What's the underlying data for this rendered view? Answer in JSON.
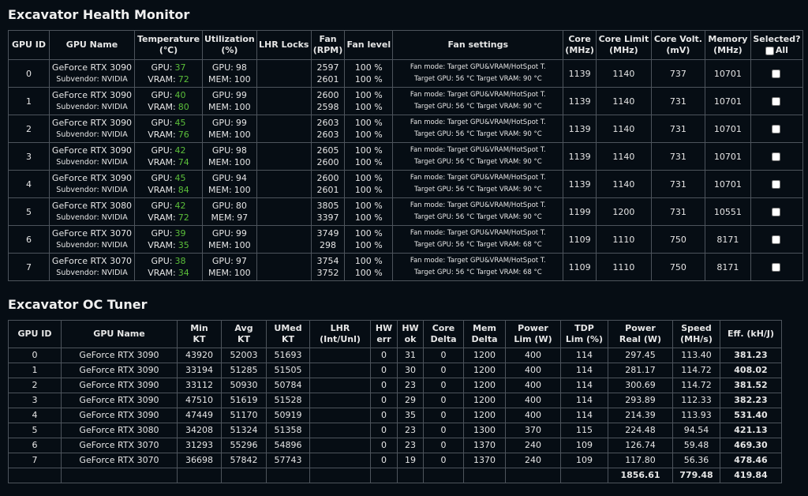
{
  "labels": {
    "gpu": "GPU:",
    "vram": "VRAM:",
    "mem": "MEM:"
  },
  "health": {
    "title": "Excavator Health Monitor",
    "headers": [
      [
        "GPU ID"
      ],
      [
        "GPU Name"
      ],
      [
        "Temperature",
        "(℃)"
      ],
      [
        "Utilization",
        "(%)"
      ],
      [
        "LHR Locks"
      ],
      [
        "Fan",
        "(RPM)"
      ],
      [
        "Fan level"
      ],
      [
        "Fan settings"
      ],
      [
        "Core",
        "(MHz)"
      ],
      [
        "Core Limit",
        "(MHz)"
      ],
      [
        "Core Volt.",
        "(mV)"
      ],
      [
        "Memory",
        "(MHz)"
      ],
      [
        "Selected?",
        "All"
      ]
    ],
    "rows": [
      {
        "id": 0,
        "name": "GeForce RTX 3090",
        "subvendor": "Subvendor: NVIDIA",
        "temp": [
          37,
          72
        ],
        "util": [
          98,
          100
        ],
        "fan_rpm": [
          2597,
          2601
        ],
        "fan_level": [
          "100 %",
          "100 %"
        ],
        "fan_settings": [
          "Fan mode: Target GPU&VRAM/HotSpot T.",
          "Target GPU: 56 °C Target VRAM: 90 °C"
        ],
        "core": 1139,
        "core_limit": 1140,
        "voltage": 737,
        "memory": 10701
      },
      {
        "id": 1,
        "name": "GeForce RTX 3090",
        "subvendor": "Subvendor: NVIDIA",
        "temp": [
          40,
          80
        ],
        "util": [
          99,
          100
        ],
        "fan_rpm": [
          2600,
          2598
        ],
        "fan_level": [
          "100 %",
          "100 %"
        ],
        "fan_settings": [
          "Fan mode: Target GPU&VRAM/HotSpot T.",
          "Target GPU: 56 °C Target VRAM: 90 °C"
        ],
        "core": 1139,
        "core_limit": 1140,
        "voltage": 731,
        "memory": 10701
      },
      {
        "id": 2,
        "name": "GeForce RTX 3090",
        "subvendor": "Subvendor: NVIDIA",
        "temp": [
          45,
          76
        ],
        "util": [
          99,
          100
        ],
        "fan_rpm": [
          2603,
          2603
        ],
        "fan_level": [
          "100 %",
          "100 %"
        ],
        "fan_settings": [
          "Fan mode: Target GPU&VRAM/HotSpot T.",
          "Target GPU: 56 °C Target VRAM: 90 °C"
        ],
        "core": 1139,
        "core_limit": 1140,
        "voltage": 731,
        "memory": 10701
      },
      {
        "id": 3,
        "name": "GeForce RTX 3090",
        "subvendor": "Subvendor: NVIDIA",
        "temp": [
          42,
          74
        ],
        "util": [
          98,
          100
        ],
        "fan_rpm": [
          2605,
          2600
        ],
        "fan_level": [
          "100 %",
          "100 %"
        ],
        "fan_settings": [
          "Fan mode: Target GPU&VRAM/HotSpot T.",
          "Target GPU: 56 °C Target VRAM: 90 °C"
        ],
        "core": 1139,
        "core_limit": 1140,
        "voltage": 731,
        "memory": 10701
      },
      {
        "id": 4,
        "name": "GeForce RTX 3090",
        "subvendor": "Subvendor: NVIDIA",
        "temp": [
          45,
          84
        ],
        "util": [
          94,
          100
        ],
        "fan_rpm": [
          2600,
          2601
        ],
        "fan_level": [
          "100 %",
          "100 %"
        ],
        "fan_settings": [
          "Fan mode: Target GPU&VRAM/HotSpot T.",
          "Target GPU: 56 °C Target VRAM: 90 °C"
        ],
        "core": 1139,
        "core_limit": 1140,
        "voltage": 731,
        "memory": 10701
      },
      {
        "id": 5,
        "name": "GeForce RTX 3080",
        "subvendor": "Subvendor: NVIDIA",
        "temp": [
          42,
          72
        ],
        "util": [
          80,
          97
        ],
        "fan_rpm": [
          3805,
          3397
        ],
        "fan_level": [
          "100 %",
          "100 %"
        ],
        "fan_settings": [
          "Fan mode: Target GPU&VRAM/HotSpot T.",
          "Target GPU: 56 °C Target VRAM: 90 °C"
        ],
        "core": 1199,
        "core_limit": 1200,
        "voltage": 731,
        "memory": 10551
      },
      {
        "id": 6,
        "name": "GeForce RTX 3070",
        "subvendor": "Subvendor: NVIDIA",
        "temp": [
          39,
          35
        ],
        "util": [
          99,
          100
        ],
        "fan_rpm": [
          3749,
          298
        ],
        "fan_level": [
          "100 %",
          "100 %"
        ],
        "fan_settings": [
          "Fan mode: Target GPU&VRAM/HotSpot T.",
          "Target GPU: 56 °C Target VRAM: 68 °C"
        ],
        "core": 1109,
        "core_limit": 1110,
        "voltage": 750,
        "memory": 8171
      },
      {
        "id": 7,
        "name": "GeForce RTX 3070",
        "subvendor": "Subvendor: NVIDIA",
        "temp": [
          38,
          34
        ],
        "util": [
          97,
          100
        ],
        "fan_rpm": [
          3754,
          3752
        ],
        "fan_level": [
          "100 %",
          "100 %"
        ],
        "fan_settings": [
          "Fan mode: Target GPU&VRAM/HotSpot T.",
          "Target GPU: 56 °C Target VRAM: 68 °C"
        ],
        "core": 1109,
        "core_limit": 1110,
        "voltage": 750,
        "memory": 8171
      }
    ]
  },
  "oc": {
    "title": "Excavator OC Tuner",
    "headers": [
      [
        "GPU ID"
      ],
      [
        "GPU Name"
      ],
      [
        "Min",
        "KT"
      ],
      [
        "Avg",
        "KT"
      ],
      [
        "UMed",
        "KT"
      ],
      [
        "LHR",
        "(Int/Unl)"
      ],
      [
        "HW",
        "err"
      ],
      [
        "HW",
        "ok"
      ],
      [
        "Core",
        "Delta"
      ],
      [
        "Mem",
        "Delta"
      ],
      [
        "Power",
        "Lim (W)"
      ],
      [
        "TDP",
        "Lim (%)"
      ],
      [
        "Power",
        "Real (W)"
      ],
      [
        "Speed",
        "(MH/s)"
      ],
      [
        "Eff. (kH/J)"
      ]
    ],
    "rows": [
      [
        0,
        "GeForce RTX 3090",
        43920,
        52003,
        51693,
        null,
        0,
        31,
        0,
        1200,
        400,
        114,
        297.45,
        "113.40",
        381.23
      ],
      [
        1,
        "GeForce RTX 3090",
        33194,
        51285,
        51505,
        null,
        0,
        30,
        0,
        1200,
        400,
        114,
        281.17,
        114.72,
        408.02
      ],
      [
        2,
        "GeForce RTX 3090",
        33112,
        50930,
        50784,
        null,
        0,
        23,
        0,
        1200,
        400,
        114,
        300.69,
        114.72,
        381.52
      ],
      [
        3,
        "GeForce RTX 3090",
        47510,
        51619,
        51528,
        null,
        0,
        29,
        0,
        1200,
        400,
        114,
        293.89,
        112.33,
        382.23
      ],
      [
        4,
        "GeForce RTX 3090",
        47449,
        51170,
        50919,
        null,
        0,
        35,
        0,
        1200,
        400,
        114,
        214.39,
        113.93,
        "531.40"
      ],
      [
        5,
        "GeForce RTX 3080",
        34208,
        51324,
        51358,
        null,
        0,
        23,
        0,
        1300,
        370,
        115,
        224.48,
        94.54,
        421.13
      ],
      [
        6,
        "GeForce RTX 3070",
        31293,
        55296,
        54896,
        null,
        0,
        23,
        0,
        1370,
        240,
        109,
        126.74,
        59.48,
        "469.30"
      ],
      [
        7,
        "GeForce RTX 3070",
        36698,
        57842,
        57743,
        null,
        0,
        19,
        0,
        1370,
        240,
        109,
        "117.80",
        56.36,
        478.46
      ]
    ],
    "totals": [
      null,
      null,
      null,
      null,
      null,
      null,
      null,
      null,
      null,
      null,
      null,
      null,
      1856.61,
      779.48,
      419.84
    ]
  }
}
